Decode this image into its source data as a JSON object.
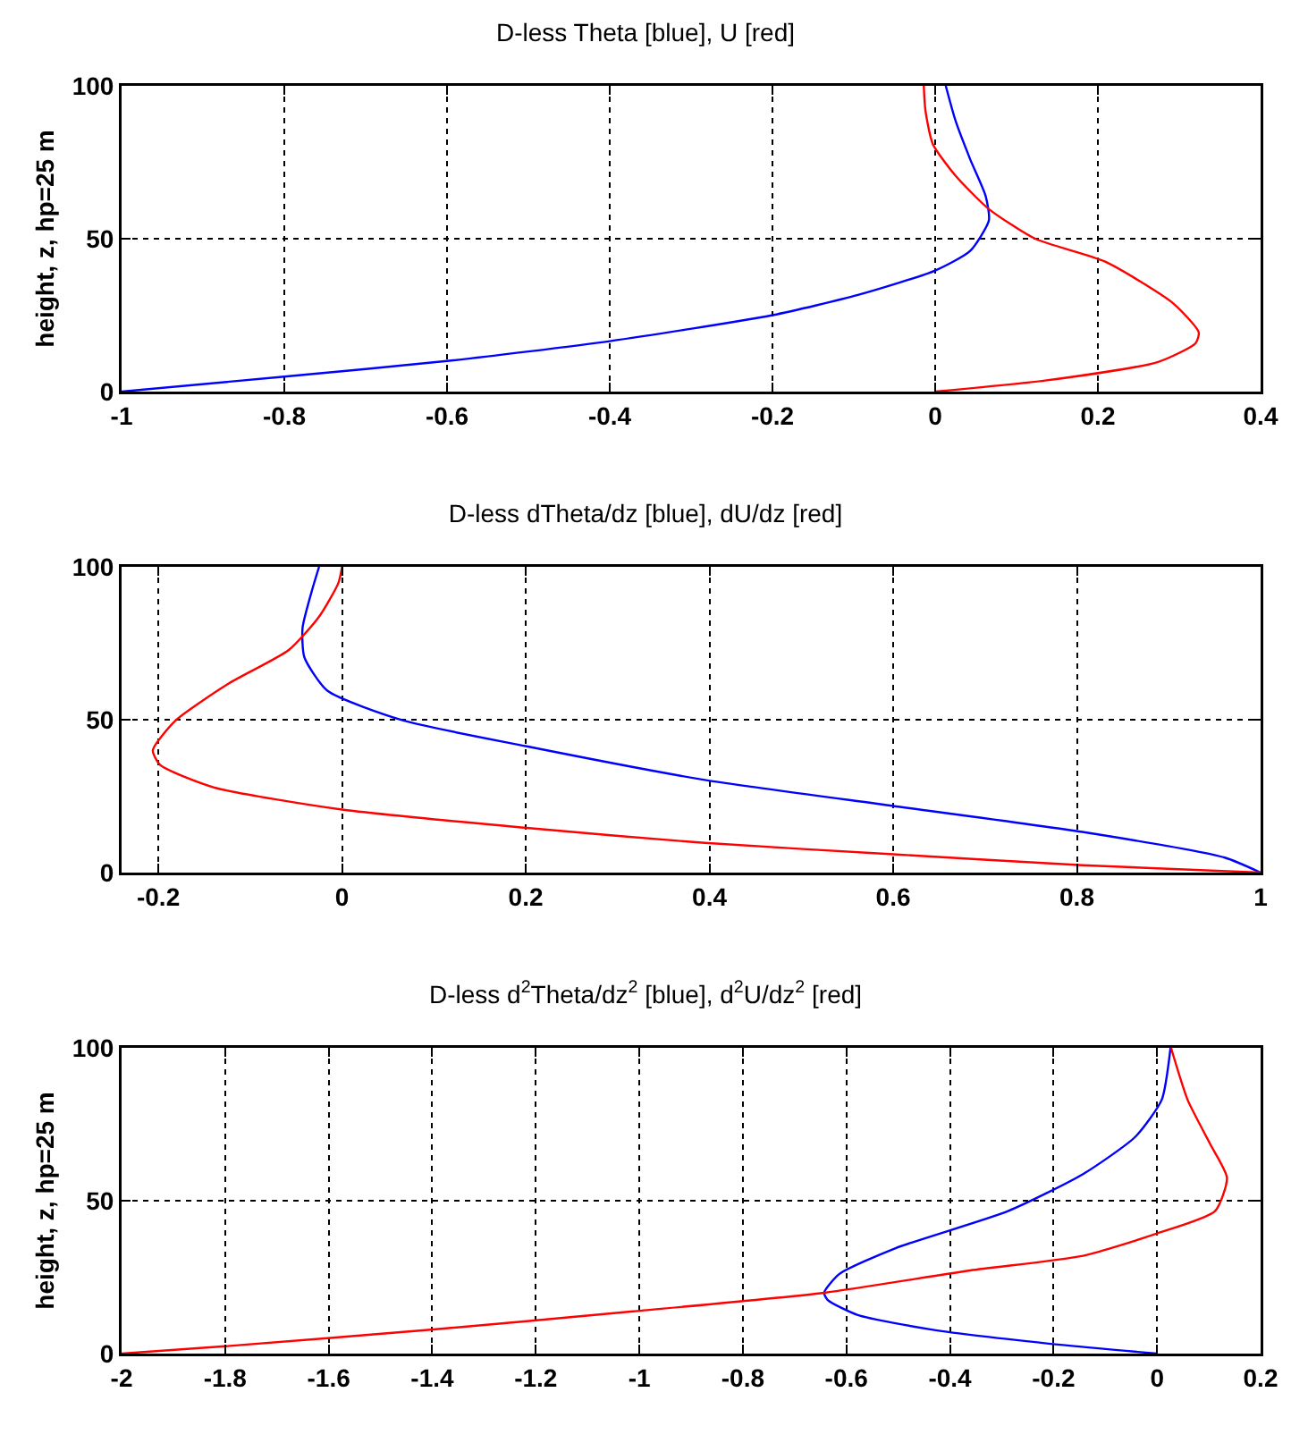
{
  "chart_data": [
    {
      "type": "line",
      "title": "D-less Theta [blue], U [red]",
      "ylabel": "height, z, hp=25 m",
      "xlim": [
        -1,
        0.4
      ],
      "xticks": [
        -1,
        -0.8,
        -0.6,
        -0.4,
        -0.2,
        0,
        0.2,
        0.4
      ],
      "ylim": [
        0,
        100
      ],
      "yticks": [
        0,
        50,
        100
      ],
      "grid": true,
      "line_style": "solid",
      "marker": "none",
      "series": [
        {
          "color": "#0000ff",
          "x": [
            -1,
            -0.8,
            -0.6,
            -0.4,
            -0.2,
            -0.095,
            0,
            0.043,
            0.066,
            0.062,
            0.043,
            0.025,
            0.013
          ],
          "values": [
            0,
            4.9,
            10,
            16.5,
            25,
            31.6,
            39.6,
            46,
            56,
            64,
            76,
            88.6,
            100
          ]
        },
        {
          "color": "#ff0000",
          "x": [
            0,
            0.135,
            0.274,
            0.32,
            0.324,
            0.292,
            0.209,
            0.123,
            0.066,
            0.025,
            -0.003,
            -0.012,
            -0.014
          ],
          "values": [
            0,
            3.6,
            9.7,
            15.8,
            19.4,
            29,
            42.5,
            50,
            59.7,
            70.6,
            81,
            92,
            100
          ]
        }
      ]
    },
    {
      "type": "line",
      "title": "D-less dTheta/dz [blue], dU/dz [red]",
      "xlim": [
        -0.24,
        1
      ],
      "xticks": [
        -0.2,
        0,
        0.2,
        0.4,
        0.6,
        0.8,
        1
      ],
      "ylim": [
        0,
        100
      ],
      "yticks": [
        0,
        50,
        100
      ],
      "grid": true,
      "line_style": "solid",
      "marker": "none",
      "series": [
        {
          "color": "#0000ff",
          "x": [
            1,
            0.961,
            0.806,
            0.6,
            0.395,
            0.201,
            0.066,
            -0.016,
            -0.041,
            -0.043,
            -0.033,
            -0.025
          ],
          "values": [
            0,
            4.9,
            13.3,
            21.8,
            30.3,
            41.3,
            49.8,
            59.5,
            70.4,
            80,
            92,
            100
          ]
        },
        {
          "color": "#ff0000",
          "x": [
            1,
            0.806,
            0.6,
            0.395,
            0.201,
            0,
            -0.14,
            -0.198,
            -0.206,
            -0.181,
            -0.123,
            -0.058,
            -0.025,
            -0.004,
            0
          ],
          "values": [
            0,
            2.4,
            6,
            9.7,
            14.6,
            20.6,
            27.9,
            35.2,
            40,
            49.8,
            61.9,
            72.8,
            83.7,
            94.7,
            100
          ]
        }
      ]
    },
    {
      "type": "line",
      "title": "D-less d$^{2}$Theta/dz$^{2}$ [blue], d$^{2}$U/dz$^{2}$ [red]",
      "ylabel": "height, z, hp=25 m",
      "xlim": [
        -2,
        0.2
      ],
      "xticks": [
        -2,
        -1.8,
        -1.6,
        -1.4,
        -1.2,
        -1,
        -0.8,
        -0.6,
        -0.4,
        -0.2,
        0,
        0.2
      ],
      "ylim": [
        0,
        100
      ],
      "yticks": [
        0,
        50,
        100
      ],
      "grid": true,
      "line_style": "solid",
      "marker": "none",
      "series": [
        {
          "color": "#0000ff",
          "x": [
            0,
            -0.187,
            -0.433,
            -0.578,
            -0.636,
            -0.643,
            -0.614,
            -0.505,
            -0.288,
            -0.143,
            -0.042,
            0.009,
            0.026
          ],
          "values": [
            0,
            2.9,
            7.8,
            12.6,
            17.5,
            19.9,
            26,
            34.5,
            46.6,
            58.7,
            70.9,
            83,
            100
          ]
        },
        {
          "color": "#ff0000",
          "x": [
            -2,
            -1.8,
            -1.403,
            -1.012,
            -0.643,
            -0.361,
            -0.143,
            0,
            0.112,
            0.135,
            0.103,
            0.059,
            0.027
          ],
          "values": [
            0,
            2.4,
            7.8,
            13.8,
            19.9,
            27.2,
            32,
            39.3,
            46.6,
            57.5,
            68.4,
            83,
            100
          ]
        }
      ]
    }
  ]
}
